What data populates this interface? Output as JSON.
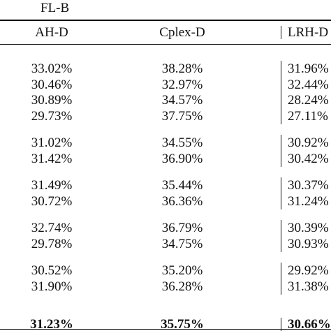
{
  "table": {
    "group_label": "FL-B",
    "columns": [
      "AH-D",
      "Cplex-D",
      "LRH-D"
    ],
    "row_groups": [
      [
        [
          "33.02%",
          "38.28%",
          "31.96%"
        ],
        [
          "30.46%",
          "32.97%",
          "32.44%"
        ],
        [
          "30.89%",
          "34.57%",
          "28.24%"
        ],
        [
          "29.73%",
          "37.75%",
          "27.11%"
        ]
      ],
      [
        [
          "31.02%",
          "34.55%",
          "30.92%"
        ],
        [
          "31.42%",
          "36.90%",
          "30.42%"
        ]
      ],
      [
        [
          "31.49%",
          "35.44%",
          "30.37%"
        ],
        [
          "30.72%",
          "36.36%",
          "31.24%"
        ]
      ],
      [
        [
          "32.74%",
          "36.79%",
          "30.39%"
        ],
        [
          "29.78%",
          "34.75%",
          "30.93%"
        ]
      ],
      [
        [
          "30.52%",
          "35.20%",
          "29.92%"
        ],
        [
          "31.90%",
          "36.28%",
          "31.38%"
        ]
      ]
    ],
    "summary": [
      "31.23%",
      "35.75%",
      "30.66%"
    ]
  }
}
